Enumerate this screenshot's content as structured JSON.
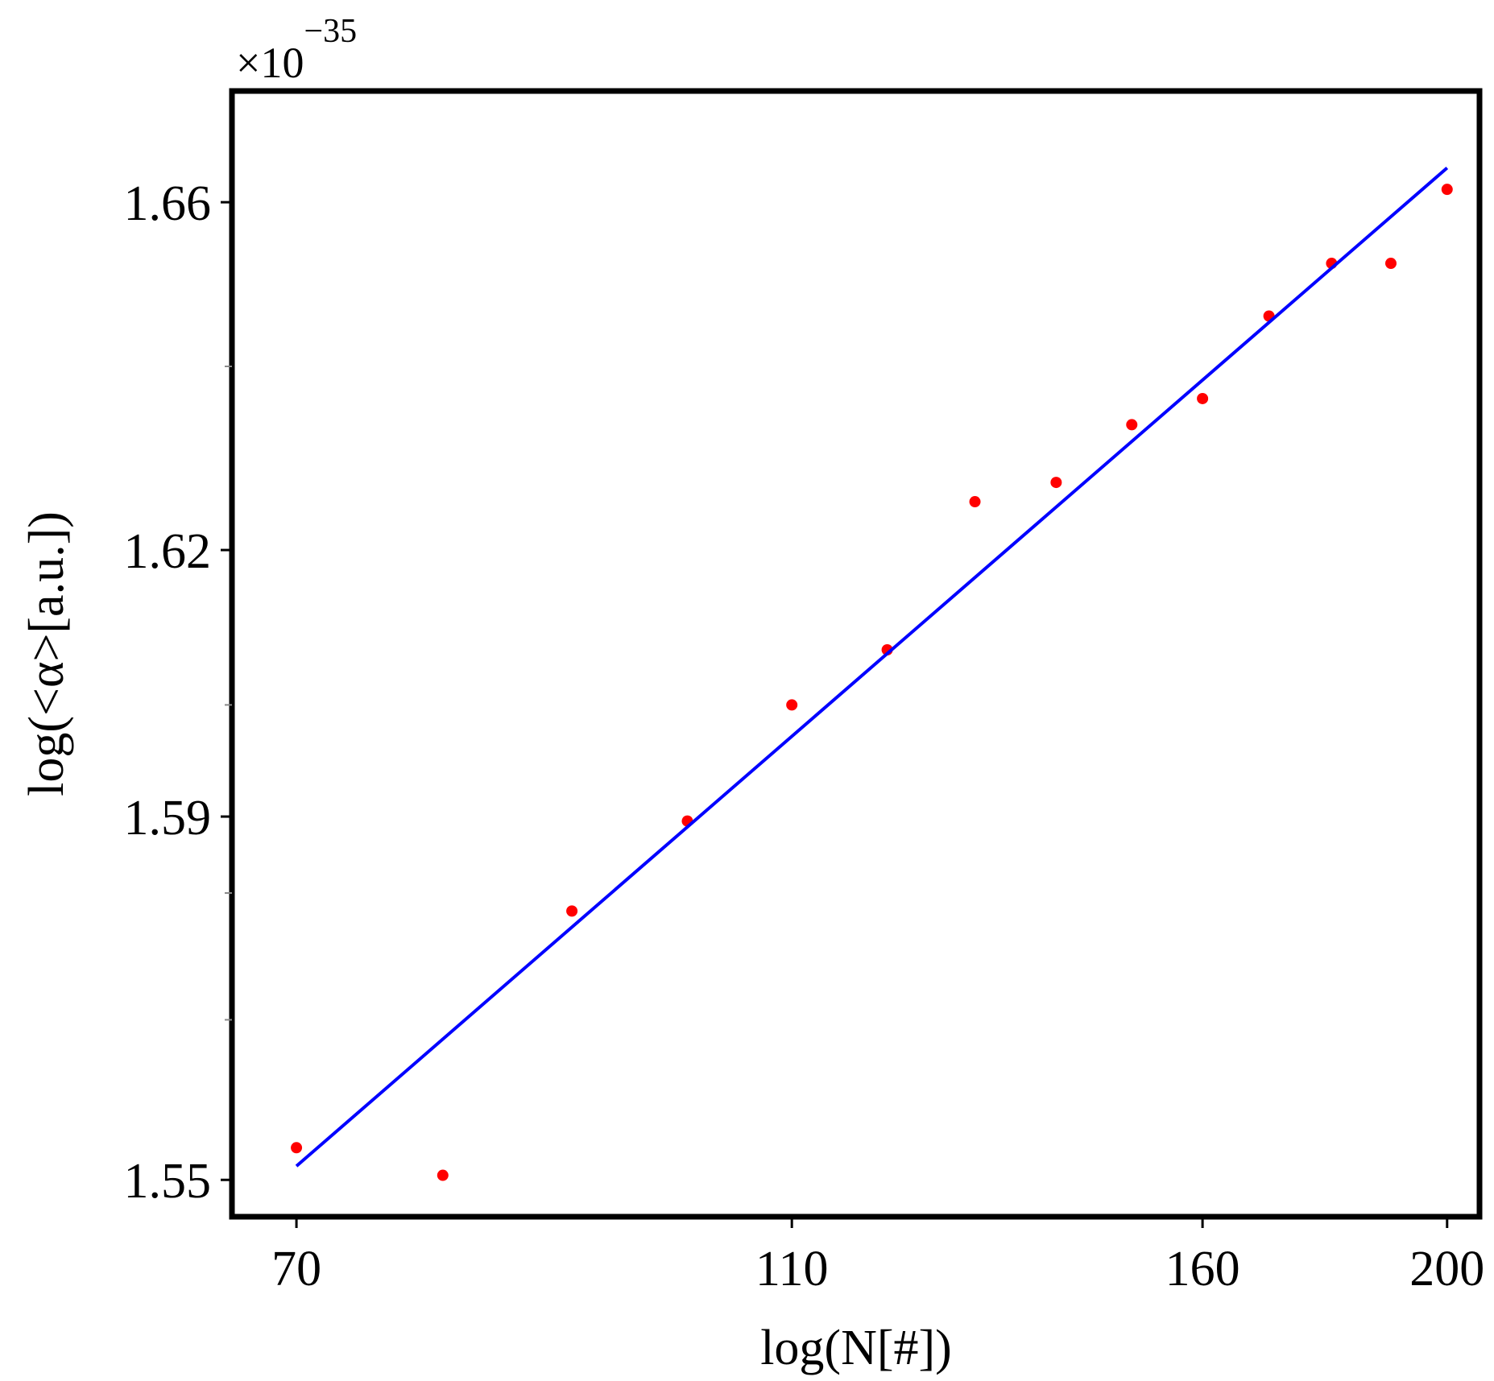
{
  "chart_data": {
    "type": "scatter",
    "xlabel": "log(N[#])",
    "ylabel": "log(<α>[a.u.])",
    "y_multiplier": {
      "base": "×10",
      "exponent": "−35"
    },
    "x_scale": "log",
    "y_scale": "log",
    "xlim": [
      66,
      206
    ],
    "ylim": [
      1.546,
      1.673
    ],
    "x_ticks": [
      {
        "value": 70,
        "label": "70"
      },
      {
        "value": 110,
        "label": "110"
      },
      {
        "value": 160,
        "label": "160"
      },
      {
        "value": 200,
        "label": "200"
      }
    ],
    "y_ticks": [
      {
        "value": 1.55,
        "label": "1.55"
      },
      {
        "value": 1.59,
        "label": "1.59"
      },
      {
        "value": 1.62,
        "label": "1.62"
      },
      {
        "value": 1.66,
        "label": "1.66"
      }
    ],
    "y_minor_ticks": [
      1.5675,
      1.5815,
      1.6025,
      1.641
    ],
    "grid": false,
    "legend": "none",
    "series": [
      {
        "kind": "points",
        "color": "#ff0000",
        "points": [
          {
            "x": 70,
            "y": 1.5535
          },
          {
            "x": 80,
            "y": 1.5505
          },
          {
            "x": 90,
            "y": 1.5795
          },
          {
            "x": 100,
            "y": 1.5895
          },
          {
            "x": 110,
            "y": 1.6025
          },
          {
            "x": 120,
            "y": 1.6087
          },
          {
            "x": 130,
            "y": 1.6255
          },
          {
            "x": 140,
            "y": 1.6277
          },
          {
            "x": 150,
            "y": 1.6343
          },
          {
            "x": 160,
            "y": 1.6373
          },
          {
            "x": 170,
            "y": 1.6468
          },
          {
            "x": 180,
            "y": 1.6529
          },
          {
            "x": 190,
            "y": 1.6529
          },
          {
            "x": 200,
            "y": 1.6615
          }
        ]
      },
      {
        "kind": "fit-line",
        "color": "#0000ff",
        "points": [
          {
            "x": 70,
            "y": 1.5515
          },
          {
            "x": 200,
            "y": 1.664
          }
        ]
      }
    ]
  }
}
